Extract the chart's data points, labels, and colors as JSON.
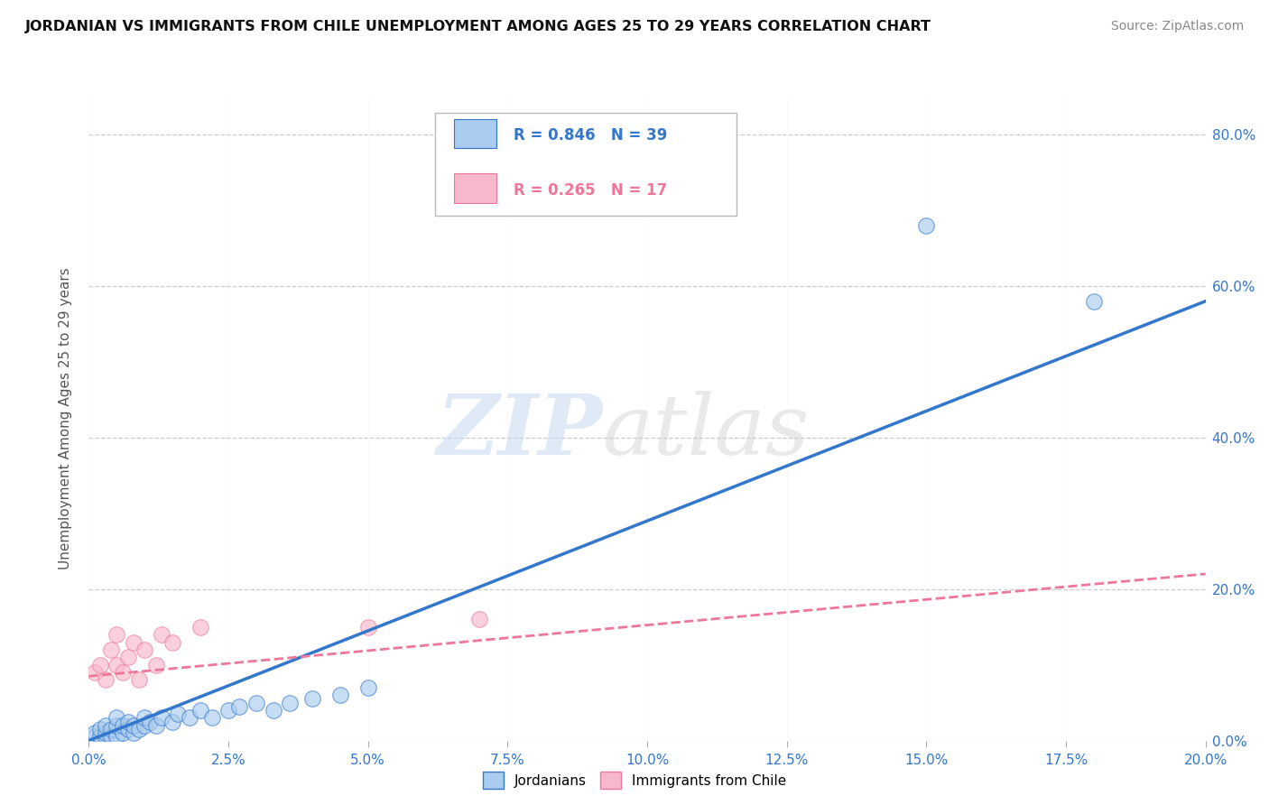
{
  "title": "JORDANIAN VS IMMIGRANTS FROM CHILE UNEMPLOYMENT AMONG AGES 25 TO 29 YEARS CORRELATION CHART",
  "source": "Source: ZipAtlas.com",
  "ylabel": "Unemployment Among Ages 25 to 29 years",
  "legend_entries": [
    {
      "label": "R = 0.846   N = 39",
      "color": "#6aaee8"
    },
    {
      "label": "R = 0.265   N = 17",
      "color": "#f4a0b8"
    }
  ],
  "legend_bottom": [
    "Jordanians",
    "Immigrants from Chile"
  ],
  "xlim": [
    0.0,
    0.2
  ],
  "ylim": [
    0.0,
    0.85
  ],
  "blue_scatter": [
    [
      0.001,
      0.005
    ],
    [
      0.001,
      0.01
    ],
    [
      0.002,
      0.005
    ],
    [
      0.002,
      0.015
    ],
    [
      0.003,
      0.005
    ],
    [
      0.003,
      0.01
    ],
    [
      0.003,
      0.02
    ],
    [
      0.004,
      0.005
    ],
    [
      0.004,
      0.015
    ],
    [
      0.005,
      0.005
    ],
    [
      0.005,
      0.02
    ],
    [
      0.005,
      0.03
    ],
    [
      0.006,
      0.01
    ],
    [
      0.006,
      0.02
    ],
    [
      0.007,
      0.015
    ],
    [
      0.007,
      0.025
    ],
    [
      0.008,
      0.01
    ],
    [
      0.008,
      0.02
    ],
    [
      0.009,
      0.015
    ],
    [
      0.01,
      0.02
    ],
    [
      0.01,
      0.03
    ],
    [
      0.011,
      0.025
    ],
    [
      0.012,
      0.02
    ],
    [
      0.013,
      0.03
    ],
    [
      0.015,
      0.025
    ],
    [
      0.016,
      0.035
    ],
    [
      0.018,
      0.03
    ],
    [
      0.02,
      0.04
    ],
    [
      0.022,
      0.03
    ],
    [
      0.025,
      0.04
    ],
    [
      0.027,
      0.045
    ],
    [
      0.03,
      0.05
    ],
    [
      0.033,
      0.04
    ],
    [
      0.036,
      0.05
    ],
    [
      0.04,
      0.055
    ],
    [
      0.045,
      0.06
    ],
    [
      0.05,
      0.07
    ],
    [
      0.15,
      0.68
    ],
    [
      0.18,
      0.58
    ]
  ],
  "pink_scatter": [
    [
      0.001,
      0.09
    ],
    [
      0.002,
      0.1
    ],
    [
      0.003,
      0.08
    ],
    [
      0.004,
      0.12
    ],
    [
      0.005,
      0.1
    ],
    [
      0.005,
      0.14
    ],
    [
      0.006,
      0.09
    ],
    [
      0.007,
      0.11
    ],
    [
      0.008,
      0.13
    ],
    [
      0.009,
      0.08
    ],
    [
      0.01,
      0.12
    ],
    [
      0.012,
      0.1
    ],
    [
      0.013,
      0.14
    ],
    [
      0.015,
      0.13
    ],
    [
      0.02,
      0.15
    ],
    [
      0.05,
      0.15
    ],
    [
      0.07,
      0.16
    ]
  ],
  "blue_line_x": [
    0.0,
    0.2
  ],
  "blue_line_y": [
    0.0,
    0.58
  ],
  "pink_line_x": [
    0.0,
    0.2
  ],
  "pink_line_y": [
    0.085,
    0.22
  ],
  "scatter_color_blue": "#aaccee",
  "scatter_color_pink": "#f8b8cc",
  "line_color_blue": "#3377cc",
  "line_color_pink": "#ee7799",
  "watermark_zip": "ZIP",
  "watermark_atlas": "atlas",
  "background_color": "#ffffff",
  "grid_color": "#cccccc",
  "xtick_vals": [
    0.0,
    0.025,
    0.05,
    0.075,
    0.1,
    0.125,
    0.15,
    0.175,
    0.2
  ],
  "xtick_labels": [
    "0.0%",
    "2.5%",
    "5.0%",
    "7.5%",
    "10.0%",
    "12.5%",
    "15.0%",
    "17.5%",
    "20.0%"
  ],
  "ytick_vals": [
    0.0,
    0.2,
    0.4,
    0.6,
    0.8
  ],
  "ytick_labels": [
    "0.0%",
    "20.0%",
    "40.0%",
    "60.0%",
    "80.0%"
  ]
}
